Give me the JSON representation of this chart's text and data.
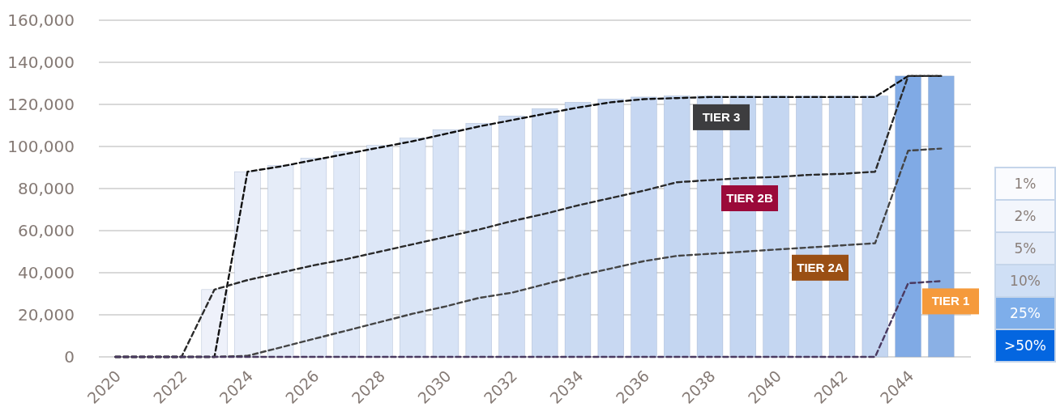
{
  "chart_data": {
    "type": "bar",
    "x": [
      2020,
      2021,
      2022,
      2023,
      2024,
      2025,
      2026,
      2027,
      2028,
      2029,
      2030,
      2031,
      2032,
      2033,
      2034,
      2035,
      2036,
      2037,
      2038,
      2039,
      2040,
      2041,
      2042,
      2043,
      2044,
      2045
    ],
    "series": [
      {
        "values": [
          null,
          null,
          null,
          32000,
          88000,
          91000,
          94500,
          97500,
          100500,
          104000,
          108000,
          111000,
          114500,
          118000,
          121000,
          122500,
          123500,
          124000,
          124000,
          124000,
          124000,
          124000,
          124000,
          124000,
          133500,
          133500
        ],
        "colors": [
          null,
          null,
          null,
          "#eef1fa",
          "#e9eef9",
          "#e5ecf8",
          "#e2eaf8",
          "#e0e9f8",
          "#dde7f7",
          "#dae5f6",
          "#d7e3f6",
          "#d4e1f5",
          "#d1def4",
          "#cddcf3",
          "#cadaf2",
          "#c8d8f2",
          "#c6d7f2",
          "#c4d6f1",
          "#c4d6f1",
          "#c4d6f1",
          "#c4d6f1",
          "#c4d6f1",
          "#c4d6f1",
          "#c4d6f1",
          "#80aae5",
          "#8ab0e5"
        ]
      },
      {
        "type": "line",
        "name": "TIER 3",
        "color": "#111111",
        "values": [
          0,
          0,
          0,
          0,
          88000,
          90500,
          93500,
          96500,
          99500,
          102500,
          106000,
          109500,
          112500,
          115500,
          118500,
          121000,
          122500,
          123000,
          123500,
          123500,
          123500,
          123500,
          123500,
          123500,
          133500,
          133500
        ]
      },
      {
        "type": "line",
        "name": "TIER 2B",
        "color": "#2a2a2a",
        "values": [
          0,
          0,
          0,
          32000,
          36500,
          40000,
          43500,
          46500,
          50000,
          53500,
          57000,
          60500,
          64500,
          68000,
          72000,
          75500,
          79000,
          83000,
          84000,
          85000,
          85500,
          86500,
          87000,
          88000,
          133500,
          133500
        ]
      },
      {
        "type": "line",
        "name": "TIER 2A",
        "color": "#444444",
        "values": [
          0,
          0,
          0,
          0,
          500,
          4500,
          8500,
          12500,
          16500,
          20500,
          24000,
          28000,
          30500,
          34500,
          38500,
          42000,
          45500,
          48000,
          49000,
          50000,
          51000,
          52000,
          53000,
          54000,
          98000,
          99000
        ]
      },
      {
        "type": "line",
        "name": "TIER 1",
        "color": "#4a3a60",
        "values": [
          0,
          0,
          0,
          0,
          0,
          0,
          0,
          0,
          0,
          0,
          0,
          0,
          0,
          0,
          0,
          0,
          0,
          0,
          0,
          0,
          0,
          0,
          0,
          0,
          35000,
          36000
        ]
      }
    ],
    "xlim": [
      2019.5,
      2045.9
    ],
    "xticks": [
      2020,
      2022,
      2024,
      2026,
      2028,
      2030,
      2032,
      2034,
      2036,
      2038,
      2040,
      2042,
      2044
    ],
    "ylim": [
      0,
      160000
    ],
    "yticks": [
      {
        "value": 0,
        "label": "0"
      },
      {
        "value": 20000,
        "label": "20,000"
      },
      {
        "value": 40000,
        "label": "40,000"
      },
      {
        "value": 60000,
        "label": "60,000"
      },
      {
        "value": 80000,
        "label": "80,000"
      },
      {
        "value": 100000,
        "label": "100,000"
      },
      {
        "value": 120000,
        "label": "120,000"
      },
      {
        "value": 140000,
        "label": "140,000"
      },
      {
        "value": 160000,
        "label": "160,000"
      }
    ],
    "grid": "y",
    "line_style": "dashed",
    "annotations": [
      "1%",
      "2%",
      "5%",
      "10%",
      "25%",
      ">50%"
    ]
  }
}
